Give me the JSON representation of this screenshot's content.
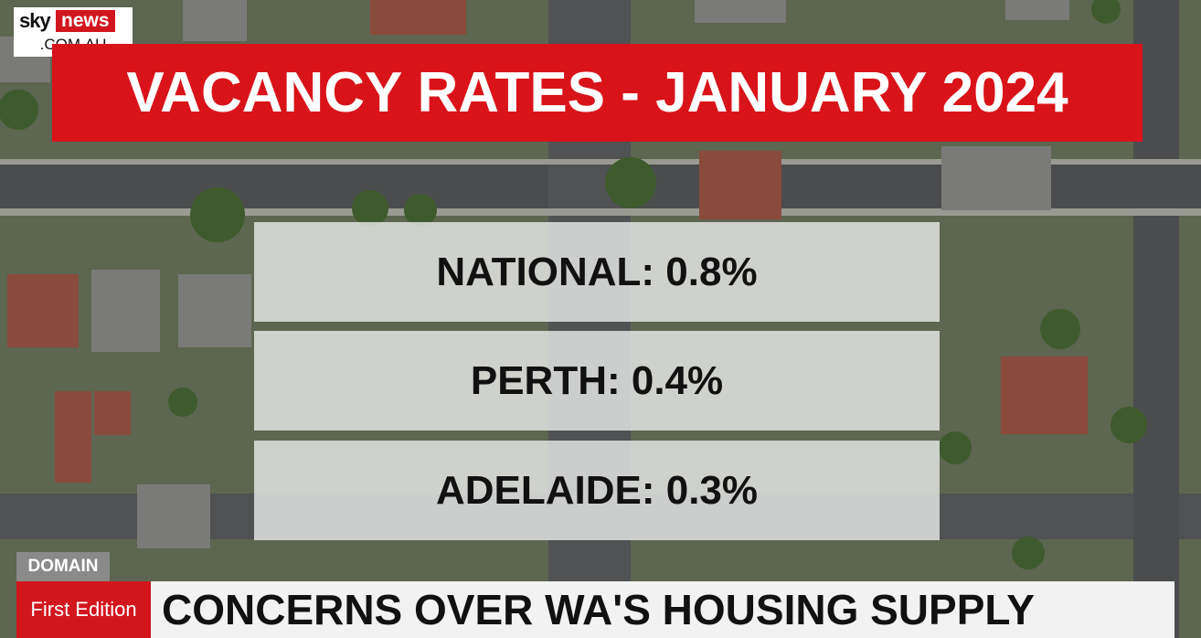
{
  "logo": {
    "brand": "sky",
    "name": "news",
    "domain": ".COM.AU"
  },
  "title": "VACANCY RATES - JANUARY 2024",
  "rows": [
    "NATIONAL: 0.8%",
    "PERTH: 0.4%",
    "ADELAIDE: 0.3%"
  ],
  "source": "DOMAIN",
  "program": "First Edition",
  "headline": "CONCERNS OVER WA'S HOUSING SUPPLY"
}
